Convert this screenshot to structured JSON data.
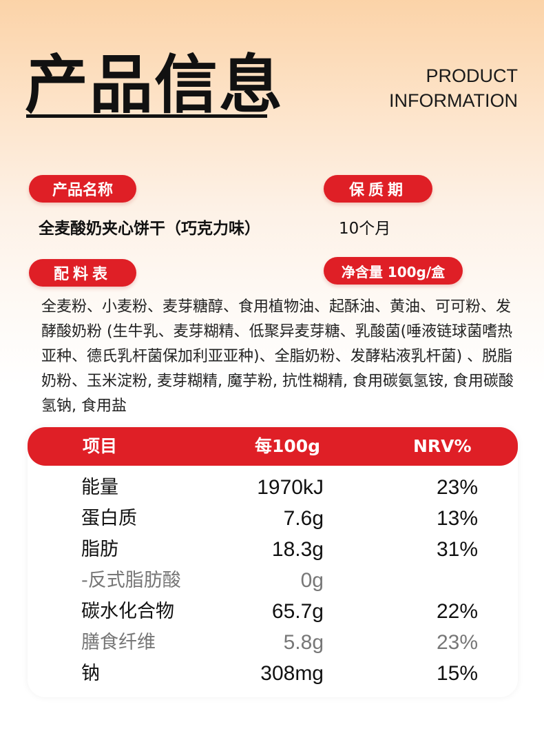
{
  "header": {
    "title_cn": "产品信息",
    "title_en_line1": "PRODUCT",
    "title_en_line2": "INFORMATION"
  },
  "product_name": {
    "label": "产品名称",
    "value": "全麦酸奶夹心饼干（巧克力味）"
  },
  "shelf_life": {
    "label": "保质期",
    "value": "10个月"
  },
  "ingredients": {
    "label": "配料表",
    "text": "全麦粉、小麦粉、麦芽糖醇、食用植物油、起酥油、黄油、可可粉、发酵酸奶粉 (生牛乳、麦芽糊精、低聚异麦芽糖、乳酸菌(唾液链球菌嗜热亚种、德氏乳杆菌保加利亚亚种)、全脂奶粉、发酵粘液乳杆菌) 、脱脂奶粉、玉米淀粉, 麦芽糊精, 魔芋粉, 抗性糊精, 食用碳氨氢铵, 食用碳酸氢钠, 食用盐"
  },
  "net_content": {
    "label": "净含量 100g/盒"
  },
  "nutrition": {
    "headers": {
      "item": "项目",
      "per": "每100g",
      "nrv": "NRV%"
    },
    "rows": [
      {
        "name": "能量",
        "value": "1970kJ",
        "nrv": "23%"
      },
      {
        "name": "蛋白质",
        "value": "7.6g",
        "nrv": "13%"
      },
      {
        "name": "脂肪",
        "value": "18.3g",
        "nrv": "31%"
      },
      {
        "name": "-反式脂肪酸",
        "value": "0g",
        "nrv": ""
      },
      {
        "name": "碳水化合物",
        "value": "65.7g",
        "nrv": "22%"
      },
      {
        "name": "膳食纤维",
        "value": "5.8g",
        "nrv": "23%"
      },
      {
        "name": "钠",
        "value": "308mg",
        "nrv": "15%"
      }
    ]
  },
  "colors": {
    "accent": "#df1f26",
    "background_top": "#fbd3a8"
  }
}
